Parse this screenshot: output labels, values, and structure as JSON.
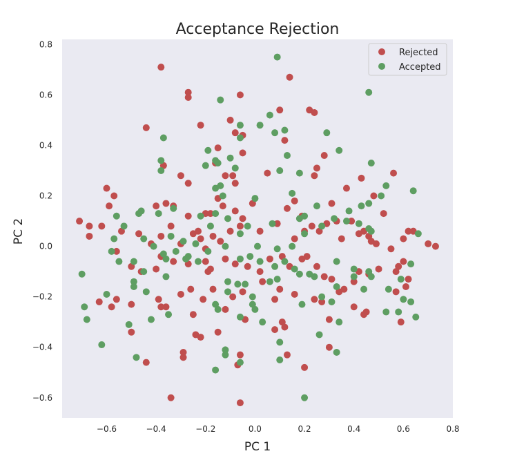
{
  "chart_data": {
    "type": "scatter",
    "title": "Acceptance Rejection",
    "xlabel": "PC 1",
    "ylabel": "PC 2",
    "xlim": [
      -0.78,
      0.8
    ],
    "ylim": [
      -0.68,
      0.82
    ],
    "xticks": [
      -0.6,
      -0.4,
      -0.2,
      0.0,
      0.2,
      0.4,
      0.6,
      0.8
    ],
    "yticks": [
      -0.6,
      -0.4,
      -0.2,
      0.0,
      0.2,
      0.4,
      0.6,
      0.8
    ],
    "xtick_labels": [
      "−0.6",
      "−0.4",
      "−0.2",
      "0.0",
      "0.2",
      "0.4",
      "0.6",
      "0.8"
    ],
    "ytick_labels": [
      "−0.6",
      "−0.4",
      "−0.2",
      "0.0",
      "0.2",
      "0.4",
      "0.6",
      "0.8"
    ],
    "grid": false,
    "legend_position": "top-right",
    "background_color": "#eaeaf2",
    "series": [
      {
        "name": "Rejected",
        "color": "#c04e4e",
        "points": [
          [
            -0.38,
            0.71
          ],
          [
            -0.27,
            0.61
          ],
          [
            -0.27,
            0.59
          ],
          [
            -0.22,
            0.48
          ],
          [
            -0.44,
            0.47
          ],
          [
            -0.06,
            0.6
          ],
          [
            0.1,
            0.54
          ],
          [
            0.14,
            0.67
          ],
          [
            0.22,
            0.54
          ],
          [
            0.24,
            0.53
          ],
          [
            0.12,
            0.42
          ],
          [
            -0.1,
            0.5
          ],
          [
            -0.08,
            0.45
          ],
          [
            -0.05,
            0.44
          ],
          [
            -0.3,
            0.28
          ],
          [
            -0.27,
            0.25
          ],
          [
            -0.37,
            0.32
          ],
          [
            -0.15,
            0.39
          ],
          [
            -0.16,
            0.33
          ],
          [
            -0.12,
            0.28
          ],
          [
            -0.09,
            0.28
          ],
          [
            -0.08,
            0.25
          ],
          [
            -0.05,
            0.37
          ],
          [
            0.05,
            0.29
          ],
          [
            0.28,
            0.36
          ],
          [
            0.25,
            0.31
          ],
          [
            0.24,
            0.28
          ],
          [
            0.37,
            0.23
          ],
          [
            0.43,
            0.27
          ],
          [
            0.56,
            0.29
          ],
          [
            -0.6,
            0.23
          ],
          [
            -0.59,
            0.16
          ],
          [
            -0.57,
            0.2
          ],
          [
            -0.4,
            0.16
          ],
          [
            -0.36,
            0.17
          ],
          [
            -0.33,
            0.16
          ],
          [
            -0.27,
            0.12
          ],
          [
            -0.23,
            0.06
          ],
          [
            -0.2,
            0.13
          ],
          [
            -0.18,
            0.13
          ],
          [
            -0.15,
            0.19
          ],
          [
            -0.13,
            0.16
          ],
          [
            -0.08,
            0.14
          ],
          [
            -0.05,
            0.11
          ],
          [
            -0.01,
            0.17
          ],
          [
            0.13,
            0.15
          ],
          [
            0.16,
            0.18
          ],
          [
            0.19,
            0.12
          ],
          [
            0.23,
            0.08
          ],
          [
            0.31,
            0.17
          ],
          [
            0.33,
            0.1
          ],
          [
            0.39,
            0.1
          ],
          [
            0.42,
            0.05
          ],
          [
            0.48,
            0.2
          ],
          [
            0.52,
            0.13
          ],
          [
            -0.71,
            0.1
          ],
          [
            -0.67,
            0.08
          ],
          [
            -0.67,
            0.04
          ],
          [
            -0.62,
            0.08
          ],
          [
            -0.54,
            0.06
          ],
          [
            -0.47,
            0.05
          ],
          [
            -0.42,
            0.01
          ],
          [
            -0.38,
            0.04
          ],
          [
            -0.34,
            0.08
          ],
          [
            -0.3,
            0.01
          ],
          [
            -0.25,
            0.05
          ],
          [
            -0.22,
            0.03
          ],
          [
            -0.2,
            -0.01
          ],
          [
            -0.17,
            0.04
          ],
          [
            -0.14,
            0.02
          ],
          [
            -0.1,
            0.06
          ],
          [
            -0.06,
            0.08
          ],
          [
            0.02,
            0.06
          ],
          [
            0.09,
            0.09
          ],
          [
            0.16,
            0.03
          ],
          [
            0.2,
            0.06
          ],
          [
            0.26,
            0.06
          ],
          [
            0.29,
            0.09
          ],
          [
            0.35,
            0.03
          ],
          [
            0.44,
            0.06
          ],
          [
            0.46,
            0.04
          ],
          [
            0.47,
            0.02
          ],
          [
            0.49,
            0.01
          ],
          [
            0.55,
            -0.01
          ],
          [
            0.6,
            0.03
          ],
          [
            0.62,
            0.06
          ],
          [
            0.64,
            0.06
          ],
          [
            0.7,
            0.01
          ],
          [
            0.73,
            0.0
          ],
          [
            -0.56,
            -0.02
          ],
          [
            -0.5,
            -0.08
          ],
          [
            -0.46,
            -0.1
          ],
          [
            -0.4,
            -0.09
          ],
          [
            -0.38,
            -0.04
          ],
          [
            -0.33,
            -0.06
          ],
          [
            -0.27,
            -0.07
          ],
          [
            -0.2,
            -0.06
          ],
          [
            -0.19,
            -0.1
          ],
          [
            -0.18,
            -0.09
          ],
          [
            -0.12,
            -0.05
          ],
          [
            -0.08,
            -0.07
          ],
          [
            -0.03,
            -0.08
          ],
          [
            0.02,
            -0.1
          ],
          [
            0.06,
            -0.05
          ],
          [
            0.11,
            -0.04
          ],
          [
            0.14,
            -0.08
          ],
          [
            0.19,
            -0.05
          ],
          [
            0.21,
            -0.04
          ],
          [
            0.25,
            -0.08
          ],
          [
            0.28,
            -0.12
          ],
          [
            0.31,
            -0.13
          ],
          [
            0.36,
            -0.17
          ],
          [
            0.4,
            -0.14
          ],
          [
            0.42,
            -0.1
          ],
          [
            0.46,
            -0.11
          ],
          [
            0.5,
            -0.09
          ],
          [
            0.57,
            -0.1
          ],
          [
            0.58,
            -0.08
          ],
          [
            0.6,
            -0.06
          ],
          [
            0.62,
            -0.13
          ],
          [
            -0.63,
            -0.22
          ],
          [
            -0.58,
            -0.24
          ],
          [
            -0.56,
            -0.21
          ],
          [
            -0.5,
            -0.23
          ],
          [
            -0.39,
            -0.21
          ],
          [
            -0.38,
            -0.24
          ],
          [
            -0.36,
            -0.24
          ],
          [
            -0.3,
            -0.19
          ],
          [
            -0.26,
            -0.17
          ],
          [
            -0.25,
            -0.27
          ],
          [
            -0.21,
            -0.21
          ],
          [
            -0.17,
            -0.17
          ],
          [
            -0.12,
            -0.25
          ],
          [
            -0.09,
            -0.2
          ],
          [
            -0.05,
            -0.18
          ],
          [
            0.03,
            -0.14
          ],
          [
            0.08,
            -0.21
          ],
          [
            0.1,
            -0.17
          ],
          [
            0.16,
            -0.19
          ],
          [
            0.24,
            -0.21
          ],
          [
            0.27,
            -0.22
          ],
          [
            0.34,
            -0.18
          ],
          [
            0.4,
            -0.24
          ],
          [
            0.44,
            -0.27
          ],
          [
            0.45,
            -0.26
          ],
          [
            0.57,
            -0.18
          ],
          [
            0.59,
            -0.3
          ],
          [
            0.61,
            -0.16
          ],
          [
            -0.5,
            -0.34
          ],
          [
            -0.44,
            -0.46
          ],
          [
            -0.29,
            -0.44
          ],
          [
            -0.29,
            -0.42
          ],
          [
            -0.24,
            -0.35
          ],
          [
            -0.22,
            -0.36
          ],
          [
            -0.15,
            -0.34
          ],
          [
            -0.07,
            -0.47
          ],
          [
            -0.06,
            -0.43
          ],
          [
            -0.04,
            -0.29
          ],
          [
            0.08,
            -0.33
          ],
          [
            0.11,
            -0.3
          ],
          [
            0.12,
            -0.32
          ],
          [
            0.13,
            -0.43
          ],
          [
            0.2,
            -0.48
          ],
          [
            0.3,
            -0.4
          ],
          [
            -0.34,
            -0.6
          ],
          [
            -0.06,
            -0.62
          ],
          [
            0.3,
            -0.29
          ]
        ]
      },
      {
        "name": "Accepted",
        "color": "#5e9e62",
        "points": [
          [
            0.09,
            0.75
          ],
          [
            0.46,
            0.61
          ],
          [
            -0.14,
            0.58
          ],
          [
            -0.06,
            0.48
          ],
          [
            -0.37,
            0.43
          ],
          [
            -0.06,
            0.43
          ],
          [
            0.02,
            0.48
          ],
          [
            0.06,
            0.52
          ],
          [
            0.08,
            0.45
          ],
          [
            0.12,
            0.46
          ],
          [
            0.29,
            0.45
          ],
          [
            -0.38,
            0.34
          ],
          [
            -0.19,
            0.38
          ],
          [
            -0.16,
            0.34
          ],
          [
            -0.15,
            0.33
          ],
          [
            -0.2,
            0.32
          ],
          [
            -0.08,
            0.31
          ],
          [
            -0.1,
            0.35
          ],
          [
            0.1,
            0.3
          ],
          [
            0.13,
            0.36
          ],
          [
            0.18,
            0.29
          ],
          [
            0.34,
            0.38
          ],
          [
            0.47,
            0.33
          ],
          [
            -0.38,
            0.3
          ],
          [
            -0.14,
            0.24
          ],
          [
            -0.16,
            0.23
          ],
          [
            -0.13,
            0.2
          ],
          [
            -0.0,
            0.19
          ],
          [
            0.15,
            0.21
          ],
          [
            0.38,
            0.14
          ],
          [
            0.43,
            0.16
          ],
          [
            0.46,
            0.17
          ],
          [
            0.51,
            0.2
          ],
          [
            0.53,
            0.24
          ],
          [
            0.64,
            0.22
          ],
          [
            -0.56,
            0.12
          ],
          [
            -0.47,
            0.13
          ],
          [
            -0.46,
            0.14
          ],
          [
            -0.39,
            0.13
          ],
          [
            -0.33,
            0.15
          ],
          [
            -0.22,
            0.12
          ],
          [
            -0.16,
            0.13
          ],
          [
            -0.11,
            0.11
          ],
          [
            -0.03,
            0.08
          ],
          [
            0.07,
            0.09
          ],
          [
            0.18,
            0.11
          ],
          [
            0.2,
            0.12
          ],
          [
            0.25,
            0.16
          ],
          [
            0.32,
            0.11
          ],
          [
            0.42,
            0.09
          ],
          [
            0.46,
            0.07
          ],
          [
            -0.57,
            0.03
          ],
          [
            -0.53,
            0.08
          ],
          [
            -0.45,
            0.03
          ],
          [
            -0.41,
            -0.0
          ],
          [
            -0.34,
            0.04
          ],
          [
            -0.32,
            -0.02
          ],
          [
            -0.29,
            0.02
          ],
          [
            -0.24,
            0.01
          ],
          [
            -0.18,
            0.08
          ],
          [
            -0.12,
            0.0
          ],
          [
            -0.06,
            0.05
          ],
          [
            0.01,
            0.0
          ],
          [
            0.09,
            -0.01
          ],
          [
            0.15,
            -0.0
          ],
          [
            0.2,
            0.05
          ],
          [
            0.27,
            0.08
          ],
          [
            0.37,
            0.1
          ],
          [
            0.47,
            0.06
          ],
          [
            0.66,
            0.05
          ],
          [
            -0.58,
            -0.02
          ],
          [
            -0.55,
            -0.06
          ],
          [
            -0.49,
            -0.06
          ],
          [
            -0.45,
            -0.1
          ],
          [
            -0.37,
            -0.03
          ],
          [
            -0.36,
            -0.05
          ],
          [
            -0.28,
            -0.05
          ],
          [
            -0.27,
            -0.04
          ],
          [
            -0.23,
            -0.06
          ],
          [
            -0.19,
            -0.02
          ],
          [
            -0.06,
            -0.05
          ],
          [
            -0.02,
            -0.04
          ],
          [
            0.02,
            -0.06
          ],
          [
            0.08,
            -0.08
          ],
          [
            0.12,
            -0.06
          ],
          [
            0.16,
            -0.09
          ],
          [
            0.22,
            -0.11
          ],
          [
            0.33,
            -0.06
          ],
          [
            0.4,
            -0.09
          ],
          [
            0.46,
            -0.1
          ],
          [
            0.47,
            -0.12
          ],
          [
            0.63,
            -0.07
          ],
          [
            -0.7,
            -0.11
          ],
          [
            -0.49,
            -0.14
          ],
          [
            -0.49,
            -0.16
          ],
          [
            -0.44,
            -0.18
          ],
          [
            -0.36,
            -0.12
          ],
          [
            -0.11,
            -0.14
          ],
          [
            -0.11,
            -0.18
          ],
          [
            -0.07,
            -0.15
          ],
          [
            -0.04,
            -0.15
          ],
          [
            -0.01,
            -0.23
          ],
          [
            -0.01,
            -0.2
          ],
          [
            0.06,
            -0.14
          ],
          [
            0.09,
            -0.13
          ],
          [
            0.18,
            -0.11
          ],
          [
            0.24,
            -0.12
          ],
          [
            0.27,
            -0.2
          ],
          [
            0.31,
            -0.22
          ],
          [
            0.33,
            -0.16
          ],
          [
            0.4,
            -0.12
          ],
          [
            0.44,
            -0.17
          ],
          [
            0.54,
            -0.17
          ],
          [
            0.59,
            -0.13
          ],
          [
            0.6,
            -0.21
          ],
          [
            -0.69,
            -0.24
          ],
          [
            -0.68,
            -0.29
          ],
          [
            -0.6,
            -0.19
          ],
          [
            -0.42,
            -0.29
          ],
          [
            -0.35,
            -0.27
          ],
          [
            -0.16,
            -0.23
          ],
          [
            -0.15,
            -0.25
          ],
          [
            -0.06,
            -0.28
          ],
          [
            0.0,
            -0.25
          ],
          [
            0.03,
            -0.3
          ],
          [
            0.1,
            -0.38
          ],
          [
            0.19,
            -0.23
          ],
          [
            0.26,
            -0.35
          ],
          [
            0.34,
            -0.3
          ],
          [
            0.33,
            -0.42
          ],
          [
            0.53,
            -0.26
          ],
          [
            0.58,
            -0.26
          ],
          [
            0.63,
            -0.22
          ],
          [
            0.65,
            -0.28
          ],
          [
            -0.62,
            -0.39
          ],
          [
            -0.51,
            -0.31
          ],
          [
            -0.48,
            -0.44
          ],
          [
            -0.16,
            -0.49
          ],
          [
            -0.12,
            -0.41
          ],
          [
            -0.12,
            -0.43
          ],
          [
            -0.06,
            -0.46
          ],
          [
            0.1,
            -0.45
          ],
          [
            0.2,
            -0.6
          ]
        ]
      }
    ]
  }
}
